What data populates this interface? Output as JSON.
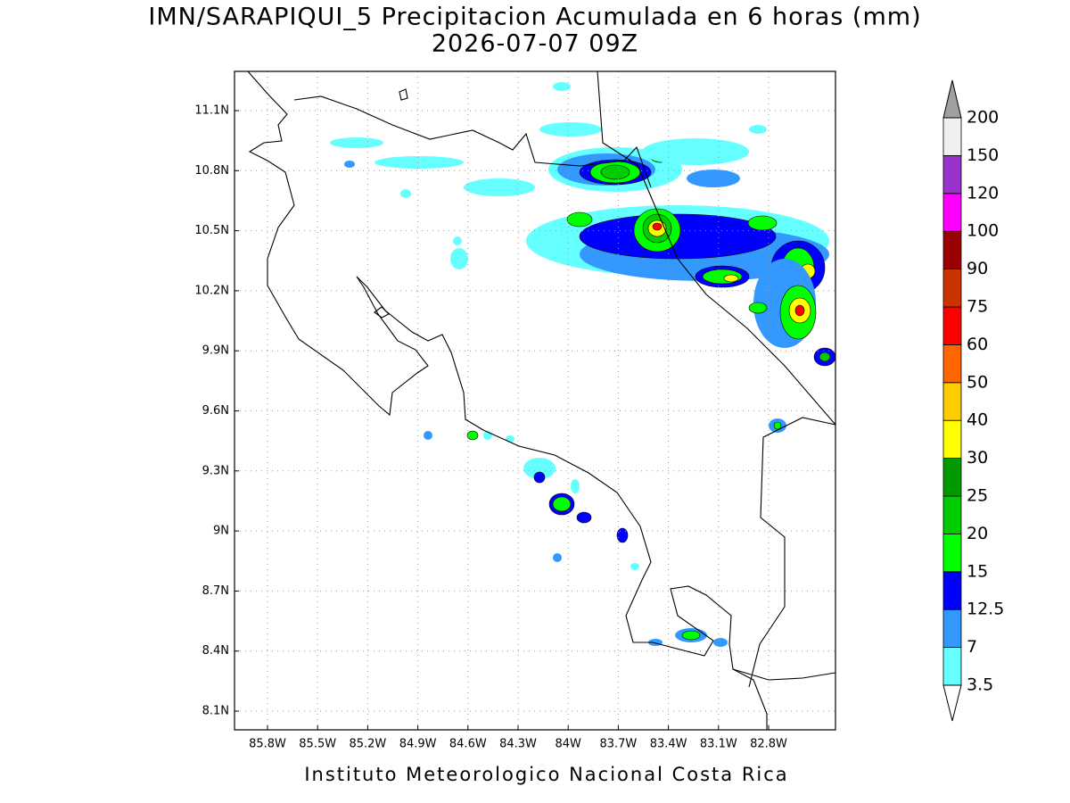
{
  "map": {
    "title": "IMN/SARAPIQUI_5 Precipitacion Acumulada en 6 horas (mm)",
    "subtitle": "2026-07-07 09Z",
    "lon_ticks": [
      "85.8W",
      "85.5W",
      "85.2W",
      "84.9W",
      "84.6W",
      "84.3W",
      "84W",
      "83.7W",
      "83.4W",
      "83.1W",
      "82.8W"
    ],
    "lat_ticks": [
      "11.1N",
      "10.8N",
      "10.5N",
      "10.2N",
      "9.9N",
      "9.6N",
      "9.3N",
      "9N",
      "8.7N",
      "8.4N",
      "8.1N"
    ],
    "footer": "Instituto Meteorologico Nacional Costa Rica"
  },
  "colorbar": {
    "levels": [
      3.5,
      7,
      12.5,
      15,
      20,
      25,
      30,
      40,
      50,
      60,
      75,
      90,
      100,
      120,
      150,
      200
    ],
    "colors": [
      "#ffffff",
      "#66ffff",
      "#3399ff",
      "#0000ff",
      "#00ff00",
      "#00cc00",
      "#009900",
      "#ffff00",
      "#ffcc00",
      "#ff6600",
      "#ff0000",
      "#cc3300",
      "#990000",
      "#ff00ff",
      "#9933cc",
      "#f0f0f0",
      "#a0a0a0"
    ]
  }
}
